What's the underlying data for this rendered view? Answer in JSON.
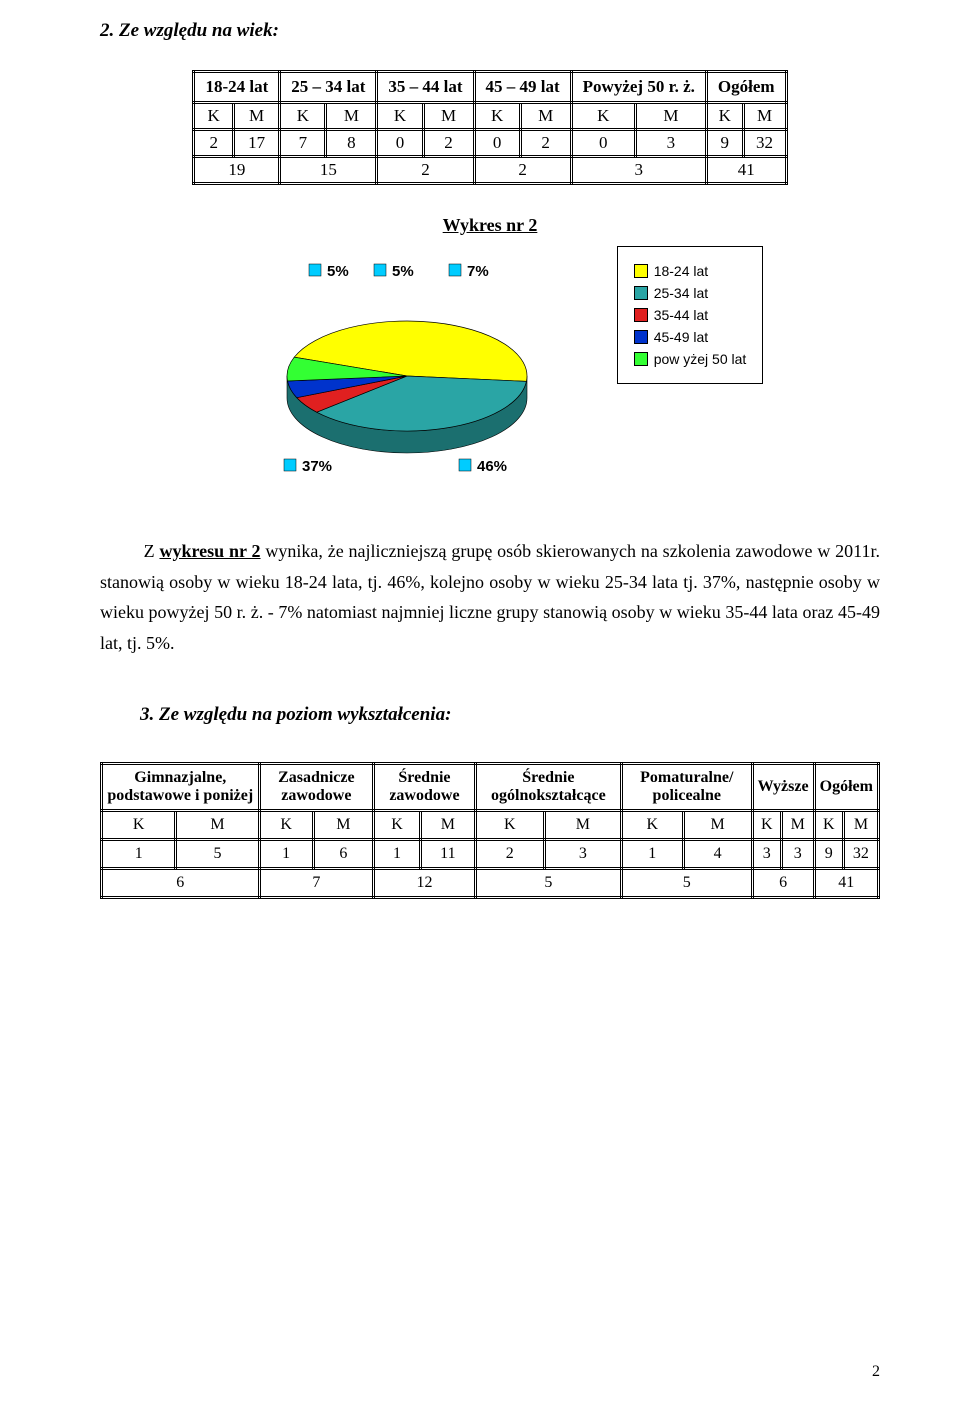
{
  "section2": {
    "heading": "2.  Ze względu na wiek:"
  },
  "age_table": {
    "headers": [
      "18-24 lat",
      "25 – 34 lat",
      "35 – 44 lat",
      "45 – 49 lat",
      "Powyżej 50 r. ż.",
      "Ogółem"
    ],
    "km_header": [
      "K",
      "M",
      "K",
      "M",
      "K",
      "M",
      "K",
      "M",
      "K",
      "M",
      "K",
      "M"
    ],
    "row_km": [
      "2",
      "17",
      "7",
      "8",
      "0",
      "2",
      "0",
      "2",
      "0",
      "3",
      "9",
      "32"
    ],
    "row_totals": [
      "19",
      "15",
      "2",
      "2",
      "3",
      "41"
    ]
  },
  "chart": {
    "title": "Wykres nr 2",
    "type": "pie",
    "slices": [
      {
        "label": "18-24 lat",
        "value": 46,
        "percent_label": "46%",
        "color": "#ffff00"
      },
      {
        "label": "25-34 lat",
        "value": 37,
        "percent_label": "37%",
        "color": "#2aa5a5"
      },
      {
        "label": "35-44 lat",
        "value": 5,
        "percent_label": "5%",
        "color": "#e02020"
      },
      {
        "label": "45-49 lat",
        "value": 5,
        "percent_label": "5%",
        "color": "#0033cc"
      },
      {
        "label": "pow yżej 50 lat",
        "value": 7,
        "percent_label": "7%",
        "color": "#33ff33"
      }
    ],
    "background_color": "#ffffff",
    "side_color": "#1b6f6f",
    "percent_square_color": "#00ccff",
    "percent_font_size": 15
  },
  "analysis_paragraph": {
    "lead": "Z ",
    "underline": "wykresu nr 2",
    "rest": " wynika, że najliczniejszą grupę osób skierowanych na szkolenia zawodowe w 2011r. stanowią osoby w wieku 18-24 lata, tj. 46%, kolejno osoby w wieku 25-34 lata tj. 37%, następnie osoby w wieku powyżej 50 r. ż. - 7% natomiast najmniej liczne grupy stanowią osoby w wieku 35-44 lata oraz 45-49 lat, tj. 5%."
  },
  "section3": {
    "heading": "3.  Ze względu na poziom wykształcenia:"
  },
  "edu_table": {
    "headers": [
      "Gimnazjalne, podstawowe i poniżej",
      "Zasadnicze zawodowe",
      "Średnie zawodowe",
      "Średnie ogólnokształcące",
      "Pomaturalne/ policealne",
      "Wyższe",
      "Ogółem"
    ],
    "km_header": [
      "K",
      "M",
      "K",
      "M",
      "K",
      "M",
      "K",
      "M",
      "K",
      "M",
      "K",
      "M",
      "K",
      "M"
    ],
    "row_km": [
      "1",
      "5",
      "1",
      "6",
      "1",
      "11",
      "2",
      "3",
      "1",
      "4",
      "3",
      "3",
      "9",
      "32"
    ],
    "row_totals": [
      "6",
      "7",
      "12",
      "5",
      "5",
      "6",
      "41"
    ]
  },
  "page_number": "2"
}
